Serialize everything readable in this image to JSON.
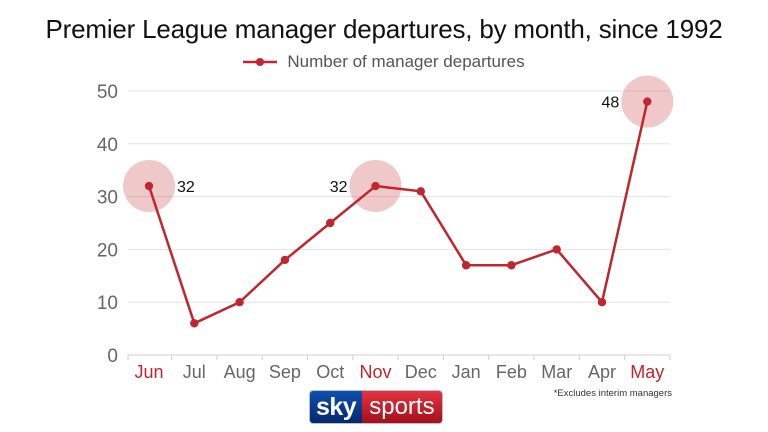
{
  "chart_data": {
    "type": "line",
    "title": "Premier League manager departures, by month, since 1992",
    "categories": [
      "Jun",
      "Jul",
      "Aug",
      "Sep",
      "Oct",
      "Nov",
      "Dec",
      "Jan",
      "Feb",
      "Mar",
      "Apr",
      "May"
    ],
    "highlighted_categories": [
      "Jun",
      "Nov",
      "May"
    ],
    "series": [
      {
        "name": "Number of manager departures",
        "values": [
          32,
          6,
          10,
          18,
          25,
          32,
          31,
          17,
          17,
          20,
          10,
          48
        ],
        "color": "#c0262d"
      }
    ],
    "annotations": [
      {
        "category": "Jun",
        "label": "32"
      },
      {
        "category": "Nov",
        "label": "32"
      },
      {
        "category": "May",
        "label": "48"
      }
    ],
    "ylim": [
      0,
      50
    ],
    "yticks": [
      "0",
      "10",
      "20",
      "30",
      "40",
      "50"
    ],
    "grid": true,
    "legend_position": "top-center",
    "footnote": "*Excludes interim managers",
    "highlight_color": "#c0262d",
    "axis_label_color": "#666666"
  },
  "branding": {
    "logo_sky": "sky",
    "logo_sports": "sports"
  }
}
